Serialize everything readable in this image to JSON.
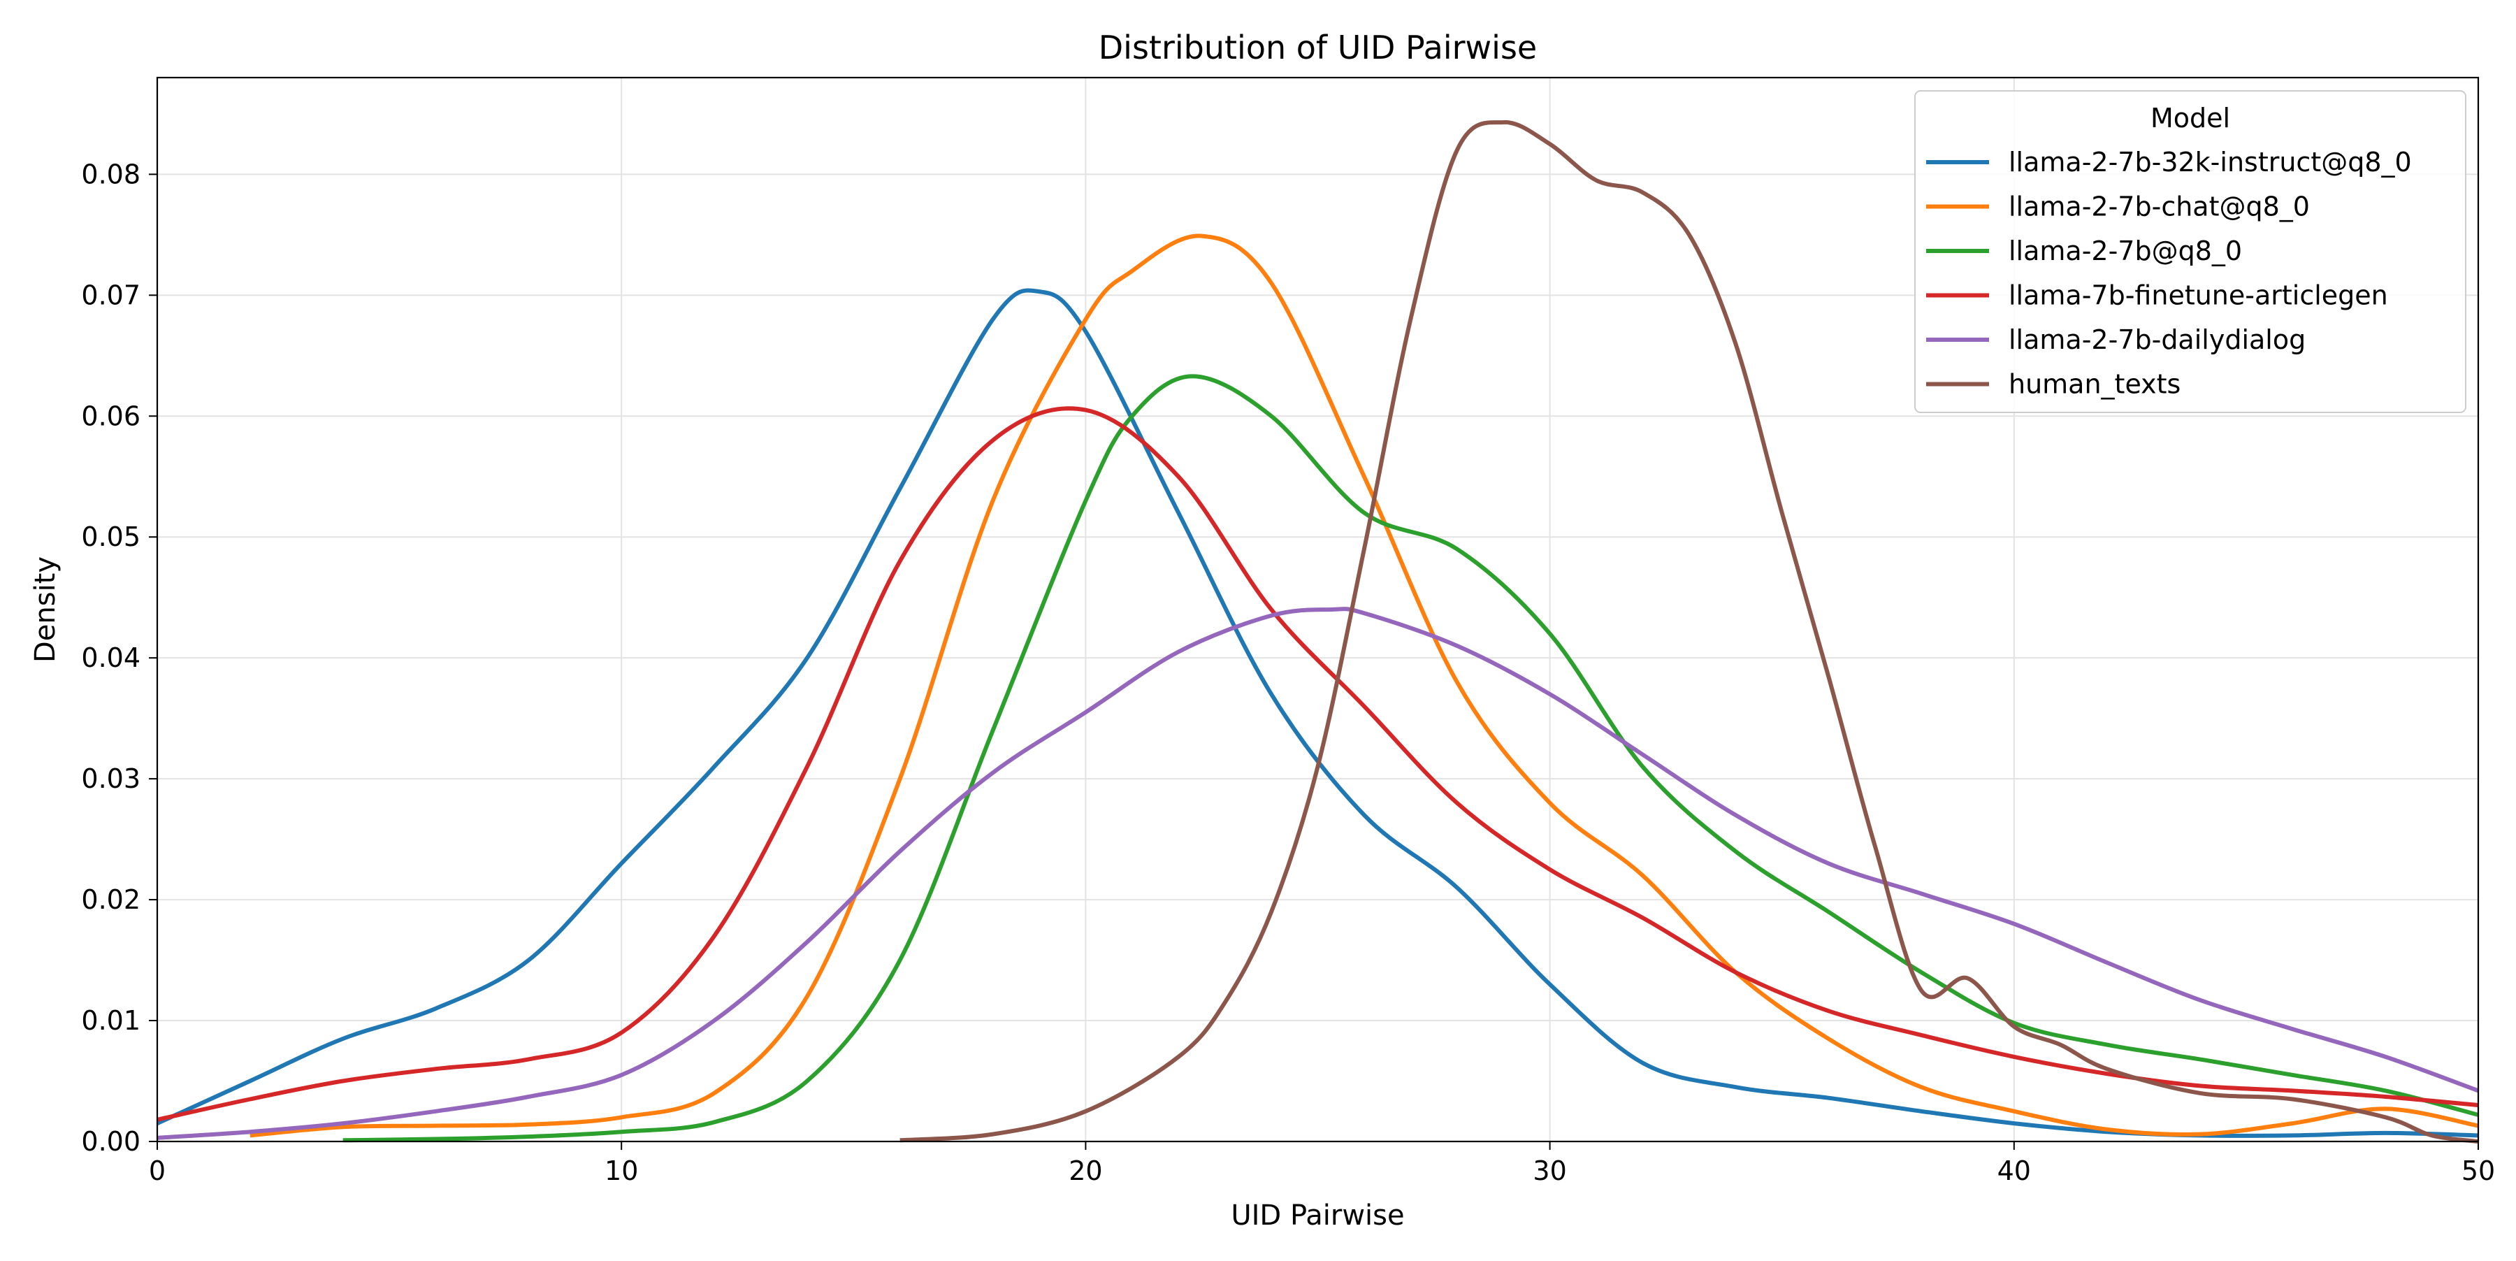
{
  "chart_data": {
    "type": "line",
    "title": "Distribution of UID Pairwise",
    "xlabel": "UID Pairwise",
    "ylabel": "Density",
    "xlim": [
      0,
      50
    ],
    "ylim": [
      0,
      0.088
    ],
    "xticks": [
      0,
      10,
      20,
      30,
      40,
      50
    ],
    "xtick_labels": [
      "0",
      "10",
      "20",
      "30",
      "40",
      "50"
    ],
    "yticks": [
      0,
      0.01,
      0.02,
      0.03,
      0.04,
      0.05,
      0.06,
      0.07,
      0.08
    ],
    "ytick_labels": [
      "0.00",
      "0.01",
      "0.02",
      "0.03",
      "0.04",
      "0.05",
      "0.06",
      "0.07",
      "0.08"
    ],
    "grid": true,
    "legend": {
      "title": "Model",
      "placement": "top-right"
    },
    "series": [
      {
        "name": "llama-2-7b-32k-instruct@q8_0",
        "color": "#1f77b4",
        "x": [
          0,
          2,
          4,
          6,
          8,
          10,
          12,
          14,
          16,
          18,
          19,
          20,
          22,
          24,
          26,
          28,
          30,
          32,
          34,
          36,
          38,
          40,
          42,
          44,
          46,
          48,
          50
        ],
        "y": [
          0.0015,
          0.005,
          0.0085,
          0.011,
          0.015,
          0.023,
          0.031,
          0.04,
          0.054,
          0.068,
          0.0703,
          0.067,
          0.052,
          0.037,
          0.027,
          0.021,
          0.013,
          0.0065,
          0.0045,
          0.0036,
          0.0025,
          0.0015,
          0.0008,
          0.0005,
          0.0005,
          0.0007,
          0.0005
        ]
      },
      {
        "name": "llama-2-7b-chat@q8_0",
        "color": "#ff7f0e",
        "x": [
          2,
          4,
          6,
          8,
          10,
          12,
          14,
          16,
          18,
          20,
          21,
          22.5,
          24,
          26,
          28,
          30,
          32,
          34,
          36,
          38,
          40,
          42,
          44,
          46,
          48,
          50
        ],
        "y": [
          0.0005,
          0.0012,
          0.0013,
          0.0014,
          0.002,
          0.004,
          0.012,
          0.03,
          0.053,
          0.068,
          0.072,
          0.0749,
          0.071,
          0.055,
          0.038,
          0.028,
          0.022,
          0.014,
          0.0085,
          0.0045,
          0.0025,
          0.001,
          0.0006,
          0.0015,
          0.0027,
          0.0013
        ]
      },
      {
        "name": "llama-2-7b@q8_0",
        "color": "#2ca02c",
        "x": [
          4,
          6,
          8,
          10,
          12,
          14,
          16,
          18,
          20,
          21,
          22.3,
          24,
          26,
          28,
          30,
          32,
          34,
          36,
          38,
          40,
          42,
          44,
          46,
          48,
          50
        ],
        "y": [
          0.0001,
          0.0002,
          0.0004,
          0.0008,
          0.0016,
          0.005,
          0.015,
          0.034,
          0.053,
          0.06,
          0.0633,
          0.06,
          0.052,
          0.049,
          0.042,
          0.031,
          0.024,
          0.019,
          0.014,
          0.0098,
          0.008,
          0.0068,
          0.0055,
          0.0042,
          0.0022
        ]
      },
      {
        "name": "llama-7b-finetune-articlegen",
        "color": "#d62728",
        "x": [
          0,
          2,
          4,
          6,
          8,
          10,
          12,
          14,
          16,
          18,
          20,
          22,
          24,
          26,
          28,
          30,
          32,
          34,
          36,
          38,
          40,
          42,
          44,
          46,
          48,
          50
        ],
        "y": [
          0.0018,
          0.0035,
          0.005,
          0.006,
          0.0068,
          0.009,
          0.017,
          0.031,
          0.048,
          0.058,
          0.0605,
          0.055,
          0.044,
          0.036,
          0.028,
          0.0225,
          0.0185,
          0.014,
          0.0108,
          0.0088,
          0.007,
          0.0056,
          0.0046,
          0.0042,
          0.0037,
          0.003
        ]
      },
      {
        "name": "llama-2-7b-dailydialog",
        "color": "#9467bd",
        "x": [
          0,
          2,
          4,
          6,
          8,
          10,
          12,
          14,
          16,
          18,
          20,
          22,
          24,
          25.3,
          26,
          28,
          30,
          32,
          34,
          36,
          38,
          40,
          42,
          44,
          46,
          48,
          50
        ],
        "y": [
          0.0003,
          0.0008,
          0.0015,
          0.0025,
          0.0037,
          0.0055,
          0.01,
          0.0165,
          0.024,
          0.0305,
          0.0355,
          0.0405,
          0.0435,
          0.044,
          0.0437,
          0.041,
          0.037,
          0.032,
          0.027,
          0.023,
          0.0205,
          0.018,
          0.0148,
          0.0117,
          0.0093,
          0.007,
          0.0042
        ]
      },
      {
        "name": "human_texts",
        "color": "#8c564b",
        "x": [
          16,
          18,
          20,
          22,
          23,
          24,
          25,
          26,
          27,
          28,
          29,
          30,
          31,
          32,
          33,
          34,
          35,
          36,
          37,
          38,
          39,
          40,
          41,
          42,
          44,
          46,
          48,
          49,
          50
        ],
        "y": [
          0.0001,
          0.0006,
          0.0025,
          0.007,
          0.0115,
          0.019,
          0.031,
          0.049,
          0.068,
          0.082,
          0.0843,
          0.0825,
          0.0795,
          0.0785,
          0.075,
          0.066,
          0.052,
          0.0385,
          0.0245,
          0.0125,
          0.0135,
          0.0095,
          0.008,
          0.006,
          0.004,
          0.0035,
          0.002,
          0.0005,
          0.0
        ]
      }
    ]
  }
}
